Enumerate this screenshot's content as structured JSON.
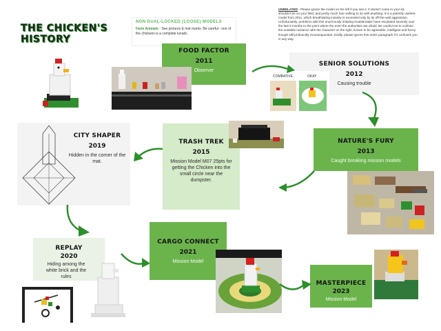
{
  "title": {
    "line1": "THE CHICKEN'S HISTORY"
  },
  "note_loose": {
    "heading": "NON DUAL-LOCKED (LOOSE) MODELS",
    "label": "Farm Animals",
    "text": " - See pictures & mat marks. Be careful - one of the chickens is a complete lunatic."
  },
  "note_unrelated": {
    "label": "UNRELATED",
    "text": " - Please ignore the model on the left if you see it.  It doesn't come in your kit, shouldn't be on your field, and pretty much has nothing to do with anything.  It is a patently useless model from 2011, which breathtaking insanity is exceeded only by its off-the-wall aggression.  Unfortunately, problems with this enormously irritating troublemaker have escalated severely over the last 9 months to the point where the even the authorities are afraid.  Be careful not to confuse the unstable nuisance with the character on the right, known to be agreeable, intelligent and funny, though still profoundly inconsequential. Kindly, please ignore this entire paragraph if it confuses you in any way."
  },
  "seasons": [
    {
      "id": "food-factor",
      "name": "FOOD FACTOR",
      "year": "2011",
      "desc": "Observer"
    },
    {
      "id": "senior-solutions",
      "name": "SENIOR SOLUTIONS",
      "year": "2012",
      "desc": "Causing trouble"
    },
    {
      "id": "natures-fury",
      "name": "NATURE'S FURY",
      "year": "2013",
      "desc": "Caught breaking mission models"
    },
    {
      "id": "trash-trek",
      "name": "TRASH TREK",
      "year": "2015",
      "desc": "Mission Model M07 25pts for getting the Chicken into the small circle near the dumpster."
    },
    {
      "id": "city-shaper",
      "name": "CITY SHAPER",
      "year": "2019",
      "desc": "Hidden in the corner of the mat."
    },
    {
      "id": "replay",
      "name": "REPLAY",
      "year": "2020",
      "desc": "Hiding among the white brick and the rules"
    },
    {
      "id": "cargo-connect",
      "name": "CARGO CONNECT",
      "year": "2021",
      "desc": "Mission Model"
    },
    {
      "id": "masterpiece",
      "name": "MASTERPIECE",
      "year": "2023",
      "desc": "Mission Model"
    }
  ],
  "photo_labels": {
    "combative": "COMBATIVE",
    "okay": "OKAY"
  },
  "colors": {
    "box_green": "#6bb44c",
    "box_light": "#f3f3f3",
    "arrow_green": "#2c8f2c",
    "title_green": "#22b32a"
  }
}
